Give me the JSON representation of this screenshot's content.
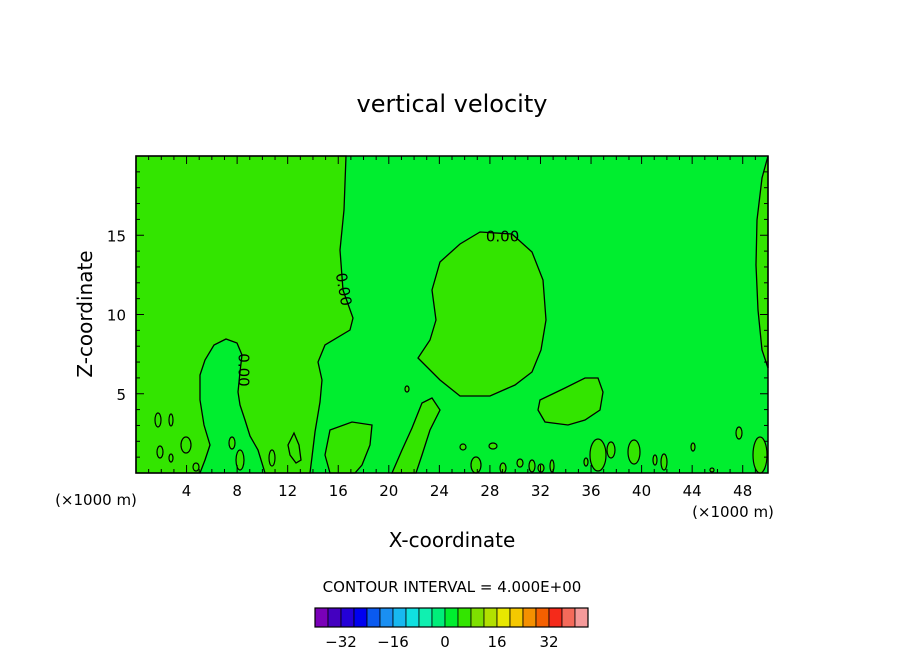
{
  "chart_data": {
    "type": "contour",
    "title": "vertical velocity",
    "xlabel": "X-coordinate",
    "ylabel": "Z-coordinate",
    "x_unit": "(×1000 m)",
    "y_unit": "(×1000 m)",
    "xlim": [
      0,
      50
    ],
    "ylim": [
      0,
      20
    ],
    "x_ticks": [
      4,
      8,
      12,
      16,
      20,
      24,
      28,
      32,
      36,
      40,
      44,
      48
    ],
    "y_ticks": [
      5,
      10,
      15
    ],
    "x_tick_labels": [
      "4",
      "8",
      "12",
      "16",
      "20",
      "24",
      "28",
      "32",
      "36",
      "40",
      "44",
      "48"
    ],
    "y_tick_labels": [
      "5",
      "10",
      "15"
    ],
    "contour_labels": [
      {
        "text": "0.00",
        "x": 29.0,
        "y": 15.0,
        "rotate": 0
      },
      {
        "text": "0.00",
        "x": 16.5,
        "y": 11.6,
        "rotate": 80
      },
      {
        "text": "0.00",
        "x": 8.6,
        "y": 6.5,
        "rotate": 90
      }
    ],
    "fill_colors": {
      "positive_small": "#00ee2f",
      "negative_small": "#33e500"
    },
    "contour_interval_text": "CONTOUR INTERVAL = 4.000E+00",
    "colorbar": {
      "colors": [
        "#7a00b8",
        "#4400c0",
        "#2400d8",
        "#0000f0",
        "#0a5af0",
        "#1a8ff2",
        "#18b8f0",
        "#10e0e0",
        "#10f0b0",
        "#00ee7a",
        "#00ee2f",
        "#33e500",
        "#7ee000",
        "#b2e000",
        "#e8e800",
        "#f5c800",
        "#f59000",
        "#f56000",
        "#f52a1a",
        "#f56a5a",
        "#f59a9a"
      ],
      "tick_values": [
        -32,
        -16,
        0,
        16,
        32
      ],
      "tick_labels": [
        "−32",
        "−16",
        "0",
        "16",
        "32"
      ],
      "vmin": -40,
      "vmax": 44,
      "step": 4
    }
  }
}
